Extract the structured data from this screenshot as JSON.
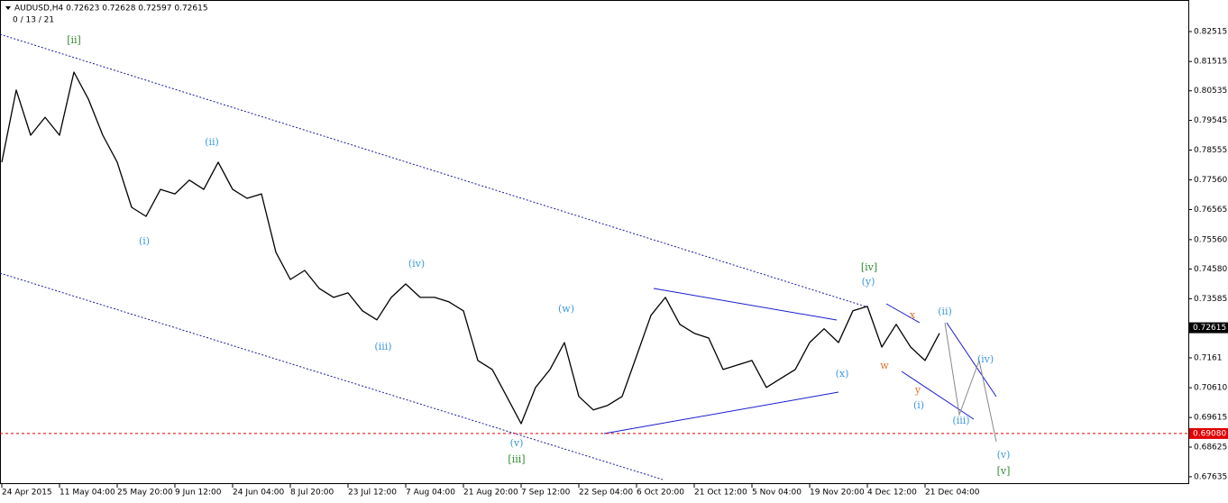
{
  "header": {
    "symbol_line": "AUDUSD,H4  0.72623 0.72628 0.72597 0.72615",
    "counter": "0 / 13 / 21"
  },
  "chart_data": {
    "type": "line",
    "categories": [
      "24 Apr 2015",
      null,
      null,
      null,
      "11 May 04:00",
      null,
      null,
      null,
      "25 May 20:00",
      null,
      null,
      null,
      "9 Jun 12:00",
      null,
      null,
      null,
      "24 Jun 04:00",
      null,
      null,
      null,
      "8 Jul 20:00",
      null,
      null,
      null,
      "23 Jul 12:00",
      null,
      null,
      null,
      "7 Aug 04:00",
      null,
      null,
      null,
      "21 Aug 20:00",
      null,
      null,
      null,
      "7 Sep 12:00",
      null,
      null,
      null,
      "22 Sep 04:00",
      null,
      null,
      null,
      "6 Oct 20:00",
      null,
      null,
      null,
      "21 Oct 12:00",
      null,
      null,
      null,
      "5 Nov 04:00",
      null,
      null,
      null,
      "19 Nov 20:00",
      null,
      null,
      null,
      "4 Dec 12:00",
      null,
      null,
      null,
      "21 Dec 04:00",
      null
    ],
    "values": [
      0.7815,
      0.8056,
      0.7905,
      0.7965,
      0.7905,
      0.8116,
      0.8026,
      0.7905,
      0.7815,
      0.7664,
      0.7634,
      0.7724,
      0.7709,
      0.7755,
      0.7724,
      0.7815,
      0.7724,
      0.7694,
      0.7709,
      0.7514,
      0.7423,
      0.7453,
      0.7393,
      0.7363,
      0.7378,
      0.7318,
      0.7288,
      0.7363,
      0.7408,
      0.7363,
      0.7363,
      0.7348,
      0.7318,
      0.7152,
      0.7122,
      0.7032,
      0.6941,
      0.7062,
      0.7122,
      0.7212,
      0.7032,
      0.6987,
      0.7002,
      0.7032,
      0.7167,
      0.7303,
      0.7363,
      0.7273,
      0.7243,
      0.7227,
      0.7122,
      0.7137,
      0.7152,
      0.7062,
      0.7092,
      0.7122,
      0.7212,
      0.7258,
      0.7212,
      0.7318,
      0.7333,
      0.7197,
      0.7273,
      0.7197,
      0.7152,
      0.7243
    ],
    "color": "#000000",
    "ylim": [
      0.6739,
      0.8357
    ],
    "yticks": [
      0.82515,
      0.81515,
      0.80535,
      0.79545,
      0.78555,
      {
        "value": 0.7756,
        "label": "0.77560"
      },
      0.76565,
      {
        "value": 0.7556,
        "label": "0.75560"
      },
      {
        "value": 0.7458,
        "label": "0.74580"
      },
      0.73585,
      0.7161,
      {
        "value": 0.7061,
        "label": "0.70610"
      },
      0.69615,
      0.68625,
      0.67635
    ],
    "price_marker": 0.72615,
    "level_marker": {
      "value": 0.6908,
      "label": "0.69080"
    },
    "annotations": [
      "[ii]",
      "(ii)",
      "(i)",
      "(iii)",
      "(iv)",
      "(v)",
      "[iii]",
      "(w)",
      "(x)",
      "(y)",
      "[iv]",
      "x",
      "w",
      "y",
      "(i)",
      "(ii)",
      "(iii)",
      "(iv)",
      "(v)",
      "[v]"
    ]
  }
}
